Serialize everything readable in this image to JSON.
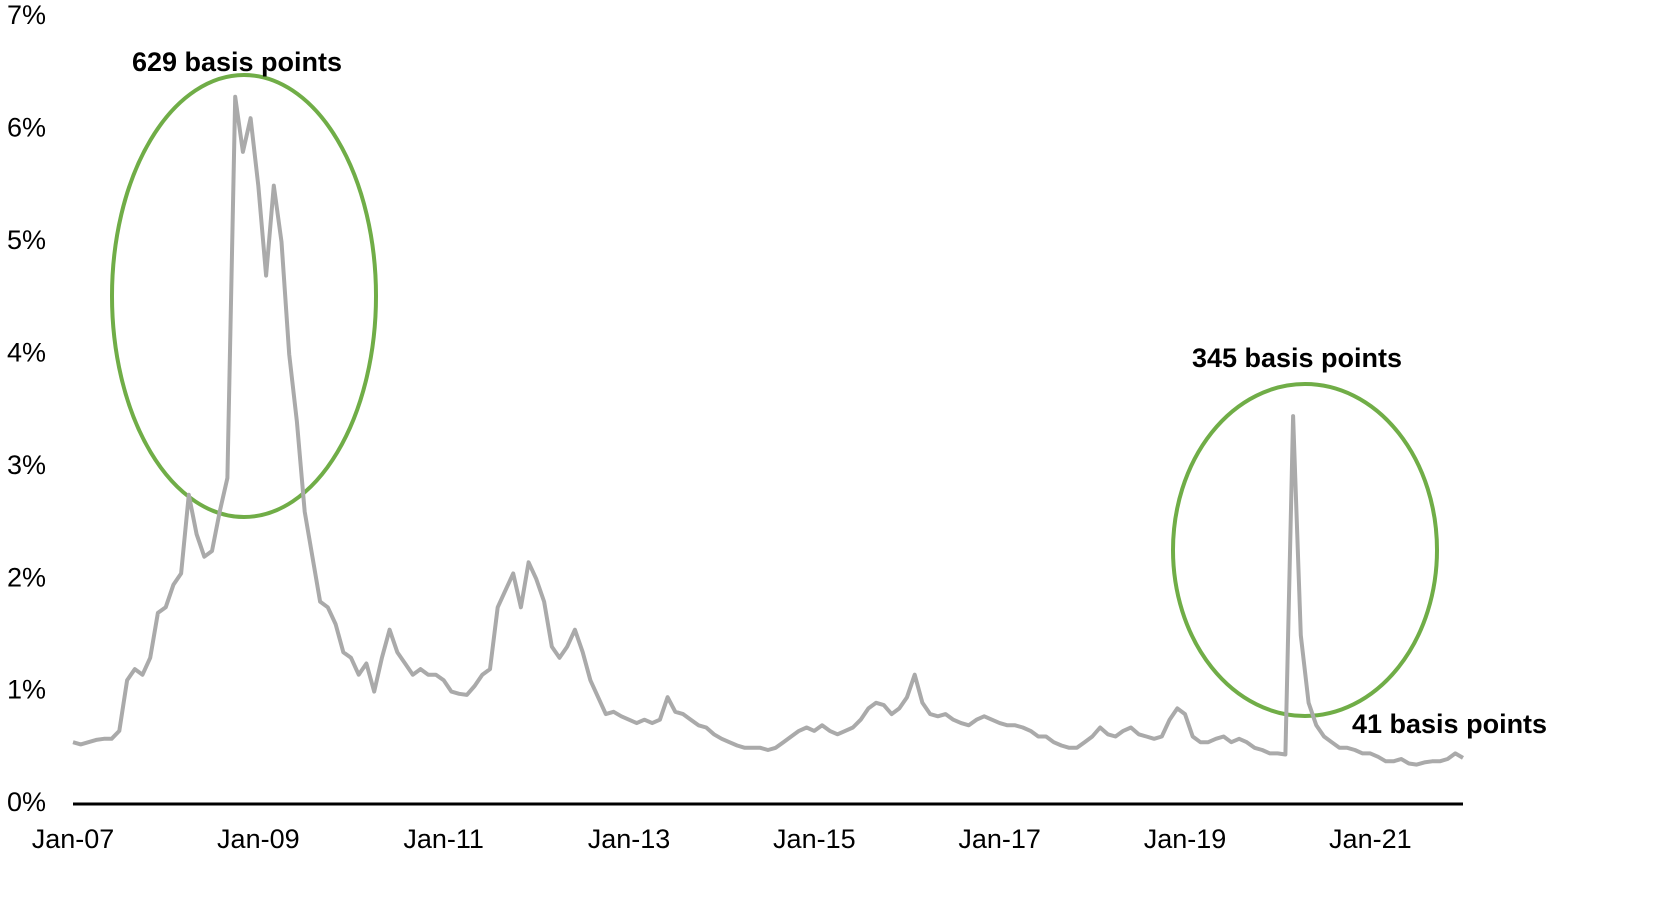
{
  "chart_data": {
    "type": "line",
    "categories": [
      "Jan-07",
      null,
      null,
      null,
      null,
      null,
      null,
      null,
      null,
      null,
      null,
      null,
      null,
      null,
      null,
      null,
      null,
      null,
      null,
      null,
      null,
      null,
      null,
      null,
      "Jan-09",
      null,
      null,
      null,
      null,
      null,
      null,
      null,
      null,
      null,
      null,
      null,
      null,
      null,
      null,
      null,
      null,
      null,
      null,
      null,
      null,
      null,
      null,
      null,
      "Jan-11",
      null,
      null,
      null,
      null,
      null,
      null,
      null,
      null,
      null,
      null,
      null,
      null,
      null,
      null,
      null,
      null,
      null,
      null,
      null,
      null,
      null,
      null,
      null,
      "Jan-13",
      null,
      null,
      null,
      null,
      null,
      null,
      null,
      null,
      null,
      null,
      null,
      null,
      null,
      null,
      null,
      null,
      null,
      null,
      null,
      null,
      null,
      null,
      null,
      "Jan-15",
      null,
      null,
      null,
      null,
      null,
      null,
      null,
      null,
      null,
      null,
      null,
      null,
      null,
      null,
      null,
      null,
      null,
      null,
      null,
      null,
      null,
      null,
      null,
      "Jan-17",
      null,
      null,
      null,
      null,
      null,
      null,
      null,
      null,
      null,
      null,
      null,
      null,
      null,
      null,
      null,
      null,
      null,
      null,
      null,
      null,
      null,
      null,
      null,
      "Jan-19",
      null,
      null,
      null,
      null,
      null,
      null,
      null,
      null,
      null,
      null,
      null,
      null,
      null,
      null,
      null,
      null,
      null,
      null,
      null,
      null,
      null,
      null,
      null,
      "Jan-21",
      null,
      null,
      null,
      null,
      null,
      null,
      null,
      null,
      null,
      null,
      null,
      null
    ],
    "values": [
      0.55,
      0.53,
      0.55,
      0.57,
      0.58,
      0.58,
      0.65,
      1.1,
      1.2,
      1.15,
      1.3,
      1.7,
      1.75,
      1.95,
      2.05,
      2.75,
      2.4,
      2.2,
      2.25,
      2.6,
      2.9,
      6.29,
      5.8,
      6.1,
      5.5,
      4.7,
      5.5,
      5.0,
      4.0,
      3.4,
      2.6,
      2.2,
      1.8,
      1.75,
      1.6,
      1.35,
      1.3,
      1.15,
      1.25,
      1.0,
      1.3,
      1.55,
      1.35,
      1.25,
      1.15,
      1.2,
      1.15,
      1.15,
      1.1,
      1.0,
      0.98,
      0.97,
      1.05,
      1.15,
      1.2,
      1.75,
      1.9,
      2.05,
      1.75,
      2.15,
      2.0,
      1.8,
      1.4,
      1.3,
      1.4,
      1.55,
      1.35,
      1.1,
      0.95,
      0.8,
      0.82,
      0.78,
      0.75,
      0.72,
      0.75,
      0.72,
      0.75,
      0.95,
      0.82,
      0.8,
      0.75,
      0.7,
      0.68,
      0.62,
      0.58,
      0.55,
      0.52,
      0.5,
      0.5,
      0.5,
      0.48,
      0.5,
      0.55,
      0.6,
      0.65,
      0.68,
      0.65,
      0.7,
      0.65,
      0.62,
      0.65,
      0.68,
      0.75,
      0.85,
      0.9,
      0.88,
      0.8,
      0.85,
      0.95,
      1.15,
      0.9,
      0.8,
      0.78,
      0.8,
      0.75,
      0.72,
      0.7,
      0.75,
      0.78,
      0.75,
      0.72,
      0.7,
      0.7,
      0.68,
      0.65,
      0.6,
      0.6,
      0.55,
      0.52,
      0.5,
      0.5,
      0.55,
      0.6,
      0.68,
      0.62,
      0.6,
      0.65,
      0.68,
      0.62,
      0.6,
      0.58,
      0.6,
      0.75,
      0.85,
      0.8,
      0.6,
      0.55,
      0.55,
      0.58,
      0.6,
      0.55,
      0.58,
      0.55,
      0.5,
      0.48,
      0.45,
      0.45,
      0.44,
      3.45,
      1.5,
      0.9,
      0.7,
      0.6,
      0.55,
      0.5,
      0.5,
      0.48,
      0.45,
      0.45,
      0.42,
      0.38,
      0.38,
      0.4,
      0.36,
      0.35,
      0.37,
      0.38,
      0.38,
      0.4,
      0.45,
      0.41
    ],
    "color": "#aaaaaa",
    "ylim": [
      0,
      7
    ],
    "yticks": [
      {
        "value": 0,
        "label": "0%"
      },
      {
        "value": 1,
        "label": "1%"
      },
      {
        "value": 2,
        "label": "2%"
      },
      {
        "value": 3,
        "label": "3%"
      },
      {
        "value": 4,
        "label": "4%"
      },
      {
        "value": 5,
        "label": "5%"
      },
      {
        "value": 6,
        "label": "6%"
      },
      {
        "value": 7,
        "label": "7%"
      }
    ],
    "grid": false,
    "annotations": [
      "629 basis points",
      "345 basis points",
      "41 basis points"
    ]
  }
}
